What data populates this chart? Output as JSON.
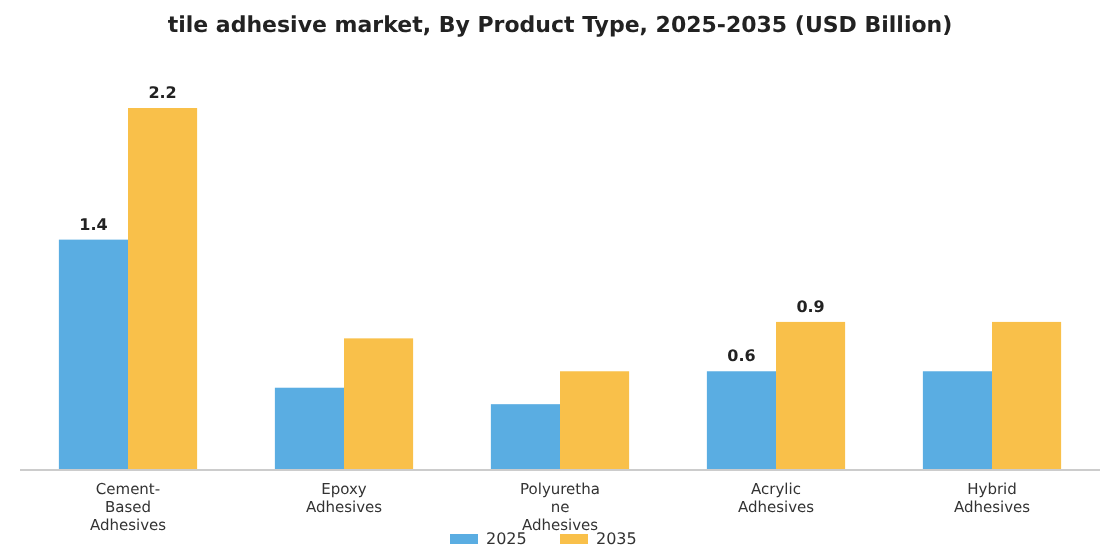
{
  "chart_data": {
    "type": "bar",
    "title": "tile adhesive market, By Product Type, 2025-2035 (USD Billion)",
    "categories": [
      "Cement-Based Adhesives",
      "Epoxy Adhesives",
      "Polyurethane Adhesives",
      "Acrylic Adhesives",
      "Hybrid Adhesives"
    ],
    "series": [
      {
        "name": "2025",
        "color": "#5aade2",
        "values": [
          1.4,
          0.5,
          0.4,
          0.6,
          0.6
        ],
        "value_labels": [
          "1.4",
          null,
          null,
          "0.6",
          null
        ]
      },
      {
        "name": "2035",
        "color": "#f9c04a",
        "values": [
          2.2,
          0.8,
          0.6,
          0.9,
          0.9
        ],
        "value_labels": [
          "2.2",
          null,
          null,
          "0.9",
          null
        ]
      }
    ],
    "legend": "bottom"
  }
}
